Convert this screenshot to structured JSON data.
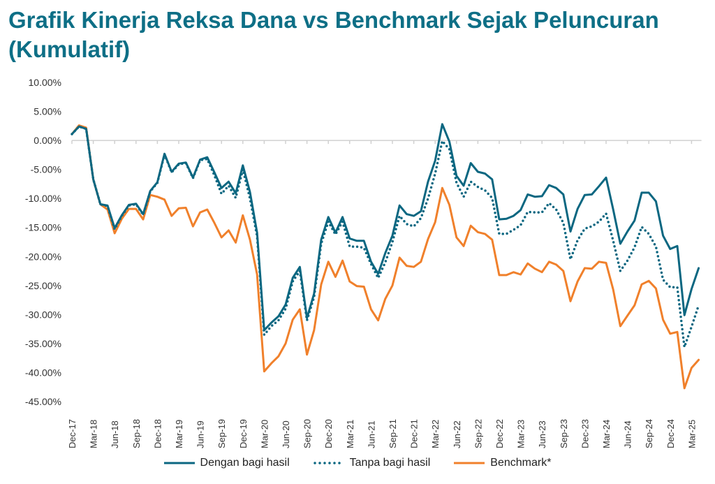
{
  "chart_data": {
    "type": "line",
    "title": "Grafik Kinerja Reksa Dana vs Benchmark Sejak Peluncuran (Kumulatif)",
    "xlabel": "",
    "ylabel": "",
    "ylim": [
      -45,
      10
    ],
    "y_ticks": [
      "10.00%",
      "5.00%",
      "0.00%",
      "-5.00%",
      "-10.00%",
      "-15.00%",
      "-20.00%",
      "-25.00%",
      "-30.00%",
      "-35.00%",
      "-40.00%",
      "-45.00%"
    ],
    "x_start": "Dec-17",
    "x_end": "Apr-25",
    "x_frequency": "monthly",
    "x_tick_labels": [
      "Dec-17",
      "Mar-18",
      "Jun-18",
      "Sep-18",
      "Dec-18",
      "Mar-19",
      "Jun-19",
      "Sep-19",
      "Dec-19",
      "Mar-20",
      "Jun-20",
      "Sep-20",
      "Dec-20",
      "Mar-21",
      "Jun-21",
      "Sep-21",
      "Dec-21",
      "Mar-22",
      "Jun-22",
      "Sep-22",
      "Dec-22",
      "Mar-23",
      "Jun-23",
      "Sep-23",
      "Dec-23",
      "Mar-24",
      "Jun-24",
      "Sep-24",
      "Dec-24",
      "Mar-25"
    ],
    "grid": false,
    "legend_position": "bottom",
    "series": [
      {
        "name": "Dengan bagi hasil",
        "color": "#0b6781",
        "style": "solid",
        "values": [
          1.1,
          2.4,
          2.0,
          -6.7,
          -11,
          -11.2,
          -15.1,
          -12.9,
          -11.1,
          -10.9,
          -12.7,
          -8.7,
          -7.2,
          -2.3,
          -5.4,
          -4,
          -3.8,
          -6.4,
          -3.3,
          -2.9,
          -5.5,
          -8.2,
          -7.1,
          -9.1,
          -4.3,
          -8.9,
          -15.9,
          -32.7,
          -31.4,
          -30.3,
          -28.3,
          -23.7,
          -21.8,
          -30.6,
          -26.4,
          -17.1,
          -13.2,
          -15.9,
          -13.2,
          -16.9,
          -17.3,
          -17.3,
          -20.9,
          -23,
          -19.4,
          -16.4,
          -11.2,
          -12.7,
          -13,
          -12.2,
          -7.1,
          -3.5,
          2.8,
          -0.2,
          -6.1,
          -7.8,
          -3.9,
          -5.4,
          -5.7,
          -6.7,
          -13.6,
          -13.5,
          -13,
          -12,
          -9.3,
          -9.7,
          -9.6,
          -7.7,
          -8.2,
          -9.3,
          -15.7,
          -11.8,
          -9.4,
          -9.3,
          -7.9,
          -6.4,
          -11.9,
          -17.8,
          -15.7,
          -13.8,
          -9,
          -9,
          -10.5,
          -16.4,
          -18.7,
          -18.2,
          -30.1,
          -25.6,
          -22
        ]
      },
      {
        "name": "Tanpa bagi hasil",
        "color": "#0b6781",
        "style": "dotted",
        "values": [
          1.1,
          2.4,
          2.0,
          -6.7,
          -11,
          -11.3,
          -15.3,
          -13,
          -11.2,
          -11,
          -12.8,
          -8.8,
          -7.3,
          -2.4,
          -5.5,
          -4.1,
          -3.9,
          -6.5,
          -3.4,
          -3.2,
          -6,
          -9.2,
          -7.8,
          -9.9,
          -5,
          -10,
          -16.5,
          -33.5,
          -32,
          -31,
          -29,
          -24.3,
          -22.5,
          -31,
          -27,
          -17.8,
          -14,
          -16.2,
          -14,
          -18.3,
          -18.3,
          -18.5,
          -21.3,
          -23.7,
          -21,
          -17.5,
          -13,
          -14.4,
          -14.8,
          -13.4,
          -10,
          -5.7,
          -0.1,
          -1.5,
          -7.3,
          -9.7,
          -7.1,
          -8,
          -8.6,
          -9.9,
          -16.1,
          -16.1,
          -15.4,
          -14.6,
          -12.3,
          -12.4,
          -12.4,
          -10.8,
          -11.9,
          -14.2,
          -20.5,
          -17.2,
          -15.2,
          -14.8,
          -14,
          -12.6,
          -17.3,
          -22.5,
          -20.7,
          -18.4,
          -14.9,
          -16.1,
          -18.3,
          -24,
          -25.3,
          -25.3,
          -35.6,
          -32.1,
          -28.4
        ]
      },
      {
        "name": "Benchmark*",
        "color": "#f0802b",
        "style": "solid",
        "values": [
          1.1,
          2.6,
          2.2,
          -6.7,
          -11,
          -11.9,
          -16,
          -13.5,
          -11.8,
          -11.8,
          -13.6,
          -9.4,
          -9.7,
          -10.2,
          -13,
          -11.7,
          -11.6,
          -14.8,
          -12.4,
          -11.9,
          -14.2,
          -16.7,
          -15.5,
          -17.6,
          -12.9,
          -17.1,
          -23.1,
          -39.8,
          -38.4,
          -37.2,
          -35,
          -30.9,
          -29.1,
          -36.9,
          -32.7,
          -24.8,
          -20.9,
          -23.5,
          -20.7,
          -24.3,
          -25.1,
          -25.2,
          -29.1,
          -31,
          -27.3,
          -25,
          -20.2,
          -21.6,
          -21.8,
          -20.9,
          -17,
          -14.1,
          -8.2,
          -11.1,
          -16.7,
          -18.2,
          -14.7,
          -15.8,
          -16.1,
          -17.1,
          -23.2,
          -23.2,
          -22.7,
          -23.1,
          -21.2,
          -22.1,
          -22.7,
          -20.9,
          -21.4,
          -22.5,
          -27.7,
          -24.3,
          -22,
          -22.1,
          -20.9,
          -21.1,
          -25.7,
          -32,
          -30.2,
          -28.4,
          -24.8,
          -24.2,
          -25.5,
          -30.9,
          -33.3,
          -33,
          -42.7,
          -39.2,
          -37.8
        ]
      }
    ]
  }
}
